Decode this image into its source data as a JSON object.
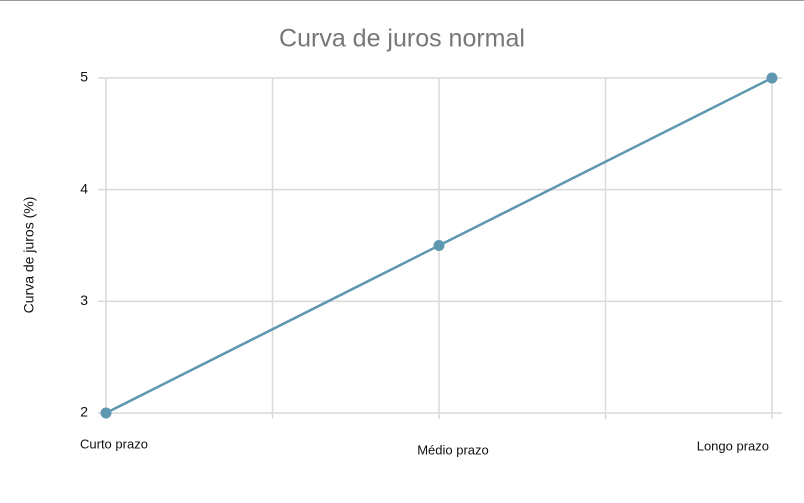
{
  "chart_data": {
    "type": "line",
    "title": "Curva de juros normal",
    "y_label": "Curva de juros (%)",
    "categories": [
      "Curto prazo",
      "Médio prazo",
      "Longo prazo"
    ],
    "series": [
      {
        "name": "Curva de juros",
        "color": "#5f97b0",
        "values": [
          2,
          3.5,
          5
        ]
      }
    ],
    "ylim": [
      2,
      5
    ],
    "yticks": [
      2,
      3,
      4,
      5
    ],
    "grid": true
  }
}
